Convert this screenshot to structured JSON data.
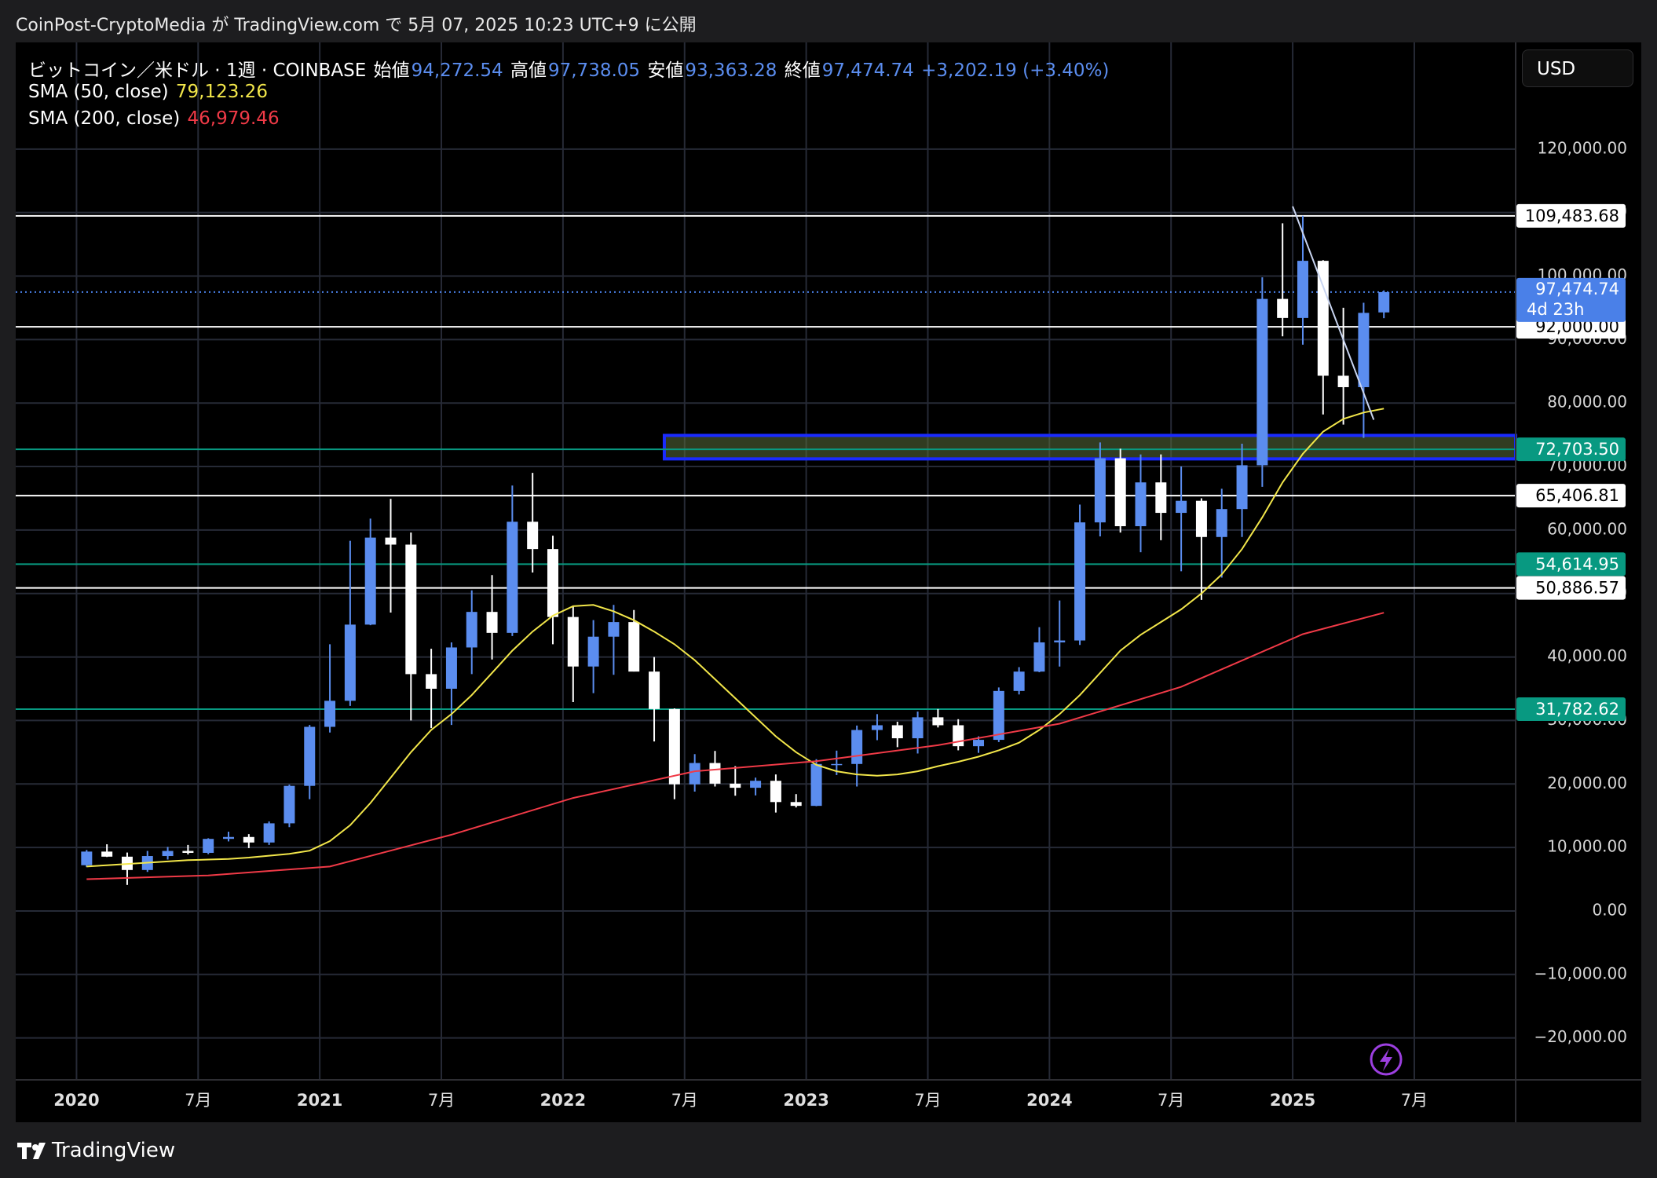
{
  "header": {
    "publisher": "CoinPost-CryptoMedia が TradingView.com で 5月 07, 2025 10:23 UTC+9 に公開"
  },
  "footer": {
    "brand": "TradingView"
  },
  "chart_data": {
    "type": "candlestick",
    "symbol": "ビットコイン／米ドル · 1週 · COINBASE",
    "ohlc_legend": [
      {
        "name": "始値",
        "value": "94,272.54"
      },
      {
        "name": "高値",
        "value": "97,738.05"
      },
      {
        "name": "安値",
        "value": "93,363.28"
      },
      {
        "name": "終値",
        "value": "97,474.74"
      }
    ],
    "change": "+3,202.19 (+3.40%)",
    "currency": "USD",
    "up_color": "#5b8def",
    "down_color": "#ffffff",
    "x": [
      "2020-01",
      "2020-02",
      "2020-03",
      "2020-04",
      "2020-05",
      "2020-06",
      "2020-07",
      "2020-08",
      "2020-09",
      "2020-10",
      "2020-11",
      "2020-12",
      "2021-01",
      "2021-02",
      "2021-03",
      "2021-04",
      "2021-05",
      "2021-06",
      "2021-07",
      "2021-08",
      "2021-09",
      "2021-10",
      "2021-11",
      "2021-12",
      "2022-01",
      "2022-02",
      "2022-03",
      "2022-04",
      "2022-05",
      "2022-06",
      "2022-07",
      "2022-08",
      "2022-09",
      "2022-10",
      "2022-11",
      "2022-12",
      "2023-01",
      "2023-02",
      "2023-03",
      "2023-04",
      "2023-05",
      "2023-06",
      "2023-07",
      "2023-08",
      "2023-09",
      "2023-10",
      "2023-11",
      "2023-12",
      "2024-01",
      "2024-02",
      "2024-03",
      "2024-04",
      "2024-05",
      "2024-06",
      "2024-07",
      "2024-08",
      "2024-09",
      "2024-10",
      "2024-11",
      "2024-12",
      "2025-01",
      "2025-02",
      "2025-03",
      "2025-04",
      "2025-05"
    ],
    "open": [
      7200,
      9350,
      8550,
      6450,
      8650,
      9450,
      9150,
      11350,
      11650,
      10780,
      13800,
      19700,
      29000,
      33100,
      45100,
      58800,
      57700,
      37300,
      35000,
      41500,
      47100,
      43800,
      61300,
      57000,
      46300,
      38500,
      43200,
      45500,
      37700,
      31800,
      19950,
      23300,
      20050,
      19400,
      20500,
      17150,
      16550,
      23150,
      23150,
      28500,
      29250,
      27200,
      30500,
      29250,
      25950,
      26950,
      34650,
      37700,
      42300,
      42600,
      61200,
      71300,
      60600,
      67500,
      62700,
      64600,
      58900,
      63300,
      70200,
      96400,
      93400,
      102400,
      84300,
      82500,
      94272.54
    ],
    "high": [
      9600,
      10500,
      9200,
      9450,
      10080,
      10400,
      11450,
      12480,
      12100,
      14100,
      19900,
      29300,
      42000,
      58300,
      61800,
      64900,
      59600,
      41300,
      42300,
      50500,
      52900,
      67000,
      69000,
      59100,
      48000,
      45800,
      48200,
      47400,
      40000,
      31900,
      24700,
      25200,
      22800,
      21000,
      21500,
      18400,
      23900,
      25250,
      29200,
      31000,
      29800,
      31400,
      31800,
      30200,
      27500,
      35200,
      38400,
      44700,
      48900,
      64000,
      73800,
      72800,
      71900,
      71900,
      70000,
      65000,
      66500,
      73600,
      99800,
      108300,
      109500,
      102500,
      95000,
      95800,
      97738.05
    ],
    "low": [
      6900,
      8500,
      4100,
      6150,
      8100,
      8900,
      8950,
      10950,
      9900,
      10400,
      13200,
      17600,
      28100,
      32300,
      45000,
      47000,
      30000,
      28800,
      29300,
      37300,
      39600,
      43300,
      53300,
      42000,
      32900,
      34300,
      37200,
      37700,
      26700,
      17600,
      18800,
      19600,
      18150,
      18200,
      15500,
      16300,
      16500,
      21400,
      19600,
      26900,
      25800,
      24800,
      28900,
      25300,
      24900,
      26600,
      34100,
      37600,
      38500,
      41900,
      59000,
      59600,
      56500,
      58400,
      53500,
      49000,
      52500,
      58900,
      66800,
      90500,
      89200,
      78200,
      76600,
      74500,
      93363.28
    ],
    "close": [
      9350,
      8550,
      6450,
      8650,
      9450,
      9150,
      11350,
      11650,
      10780,
      13800,
      19700,
      29000,
      33100,
      45100,
      58800,
      57700,
      37300,
      35000,
      41500,
      47100,
      43800,
      61300,
      57000,
      46300,
      38500,
      43200,
      45500,
      37700,
      31800,
      19950,
      23300,
      20050,
      19400,
      20500,
      17150,
      16550,
      23150,
      23150,
      28500,
      29250,
      27200,
      30500,
      29250,
      25950,
      26950,
      34650,
      37700,
      42300,
      42600,
      61200,
      71300,
      60600,
      67500,
      62700,
      64600,
      58900,
      63300,
      70200,
      96400,
      93400,
      102400,
      84300,
      82500,
      94200,
      97474.74
    ],
    "series": [
      {
        "name": "SMA (50, close)",
        "color": "#f2e64a",
        "last_label": "79,123.26",
        "x": [
          "2020-01",
          "2020-02",
          "2020-03",
          "2020-04",
          "2020-05",
          "2020-06",
          "2020-07",
          "2020-08",
          "2020-09",
          "2020-10",
          "2020-11",
          "2020-12",
          "2021-01",
          "2021-02",
          "2021-03",
          "2021-04",
          "2021-05",
          "2021-06",
          "2021-07",
          "2021-08",
          "2021-09",
          "2021-10",
          "2021-11",
          "2021-12",
          "2022-01",
          "2022-02",
          "2022-03",
          "2022-04",
          "2022-05",
          "2022-06",
          "2022-07",
          "2022-08",
          "2022-09",
          "2022-10",
          "2022-11",
          "2022-12",
          "2023-01",
          "2023-02",
          "2023-03",
          "2023-04",
          "2023-05",
          "2023-06",
          "2023-07",
          "2023-08",
          "2023-09",
          "2023-10",
          "2023-11",
          "2023-12",
          "2024-01",
          "2024-02",
          "2024-03",
          "2024-04",
          "2024-05",
          "2024-06",
          "2024-07",
          "2024-08",
          "2024-09",
          "2024-10",
          "2024-11",
          "2024-12",
          "2025-01",
          "2025-02",
          "2025-03",
          "2025-04",
          "2025-05"
        ],
        "values": [
          7000,
          7200,
          7400,
          7600,
          7800,
          8000,
          8100,
          8200,
          8400,
          8700,
          9000,
          9500,
          11000,
          13500,
          17000,
          21000,
          25000,
          28500,
          31000,
          34000,
          37500,
          41000,
          44000,
          46500,
          48000,
          48200,
          47200,
          45800,
          44000,
          42000,
          39500,
          36500,
          33500,
          30500,
          27500,
          25000,
          23000,
          22000,
          21500,
          21300,
          21500,
          22000,
          22800,
          23500,
          24300,
          25300,
          26500,
          28500,
          31000,
          34000,
          37500,
          41000,
          43500,
          45500,
          47500,
          50000,
          53000,
          57000,
          62000,
          67500,
          72000,
          75500,
          77500,
          78500,
          79123.26
        ]
      },
      {
        "name": "SMA (200, close)",
        "color": "#f03a47",
        "last_label": "46,979.46",
        "x": [
          "2020-01",
          "2020-07",
          "2021-01",
          "2021-07",
          "2022-01",
          "2022-07",
          "2023-01",
          "2023-07",
          "2024-01",
          "2024-07",
          "2025-01",
          "2025-05"
        ],
        "values": [
          5000,
          5600,
          7000,
          12000,
          17800,
          22000,
          23600,
          26100,
          29500,
          35300,
          43600,
          46979.46
        ]
      }
    ],
    "levels": [
      {
        "value": 109483.68,
        "label": "109,483.68",
        "color": "#ffffff"
      },
      {
        "value": 92000,
        "label": "92,000.00",
        "color": "#ffffff"
      },
      {
        "value": 72703.5,
        "label": "72,703.50",
        "color": "#089981"
      },
      {
        "value": 65406.81,
        "label": "65,406.81",
        "color": "#ffffff"
      },
      {
        "value": 54614.95,
        "label": "54,614.95",
        "color": "#089981"
      },
      {
        "value": 50886.57,
        "label": "50,886.57",
        "color": "#ffffff"
      },
      {
        "value": 31782.62,
        "label": "31,782.62",
        "color": "#089981"
      }
    ],
    "last_price": {
      "value": 97474.74,
      "label": "97,474.74",
      "countdown": "4d 23h",
      "color": "#4a80e8"
    },
    "zone": {
      "x": "2022-06",
      "ylim": [
        71200,
        74900
      ],
      "color": "#1a2bff"
    },
    "trendline": {
      "x": [
        "2025-01",
        "2025-05"
      ],
      "y": [
        110980,
        77370
      ],
      "color": "#c8d4f0"
    },
    "xlim": [
      "2019-10",
      "2025-12"
    ],
    "xticks": [
      {
        "value": "2020-01",
        "label": "2020"
      },
      {
        "value": "2020-07",
        "label": "7月"
      },
      {
        "value": "2021-01",
        "label": "2021"
      },
      {
        "value": "2021-07",
        "label": "7月"
      },
      {
        "value": "2022-01",
        "label": "2022"
      },
      {
        "value": "2022-07",
        "label": "7月"
      },
      {
        "value": "2023-01",
        "label": "2023"
      },
      {
        "value": "2023-07",
        "label": "7月"
      },
      {
        "value": "2024-01",
        "label": "2024"
      },
      {
        "value": "2024-07",
        "label": "7月"
      },
      {
        "value": "2025-01",
        "label": "2025"
      },
      {
        "value": "2025-07",
        "label": "7月"
      }
    ],
    "ylim": [
      -26600,
      136800
    ],
    "yticks": [
      {
        "value": -20000,
        "label": "−20,000.00"
      },
      {
        "value": -10000,
        "label": "−10,000.00"
      },
      {
        "value": 0,
        "label": "0.00"
      },
      {
        "value": 10000,
        "label": "10,000.00"
      },
      {
        "value": 20000,
        "label": "20,000.00"
      },
      {
        "value": 30000,
        "label": "30,000.00"
      },
      {
        "value": 40000,
        "label": "40,000.00"
      },
      {
        "value": 50000,
        "label": "50,000.00"
      },
      {
        "value": 60000,
        "label": "60,000.00"
      },
      {
        "value": 70000,
        "label": "70,000.00"
      },
      {
        "value": 80000,
        "label": "80,000.00"
      },
      {
        "value": 90000,
        "label": "90,000.00"
      },
      {
        "value": 100000,
        "label": "100,000.00"
      },
      {
        "value": 110000,
        "label": "110,000.00"
      },
      {
        "value": 120000,
        "label": "120,000.00"
      }
    ],
    "grid": true
  }
}
